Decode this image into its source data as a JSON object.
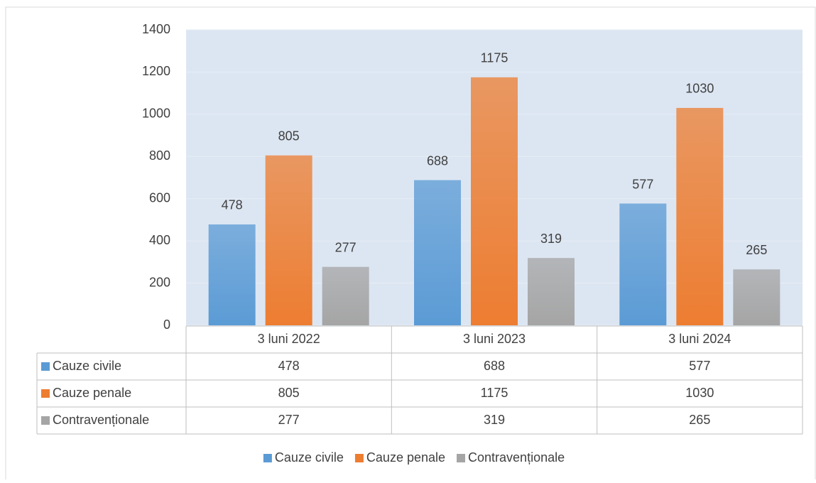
{
  "chart_data": {
    "type": "bar",
    "categories": [
      "3 luni 2022",
      "3 luni 2023",
      "3 luni 2024"
    ],
    "series": [
      {
        "name": "Cauze civile",
        "color": "#5b9bd5",
        "values": [
          478,
          688,
          577
        ]
      },
      {
        "name": "Cauze penale",
        "color": "#ed7d31",
        "values": [
          805,
          1175,
          1030
        ]
      },
      {
        "name": "Contravenționale",
        "color": "#a5a5a5",
        "values": [
          277,
          319,
          265
        ]
      }
    ],
    "ylim": [
      0,
      1400
    ],
    "yticks": [
      0,
      200,
      400,
      600,
      800,
      1000,
      1200,
      1400
    ],
    "grid": true,
    "legend": "bottom",
    "data_table": true
  }
}
